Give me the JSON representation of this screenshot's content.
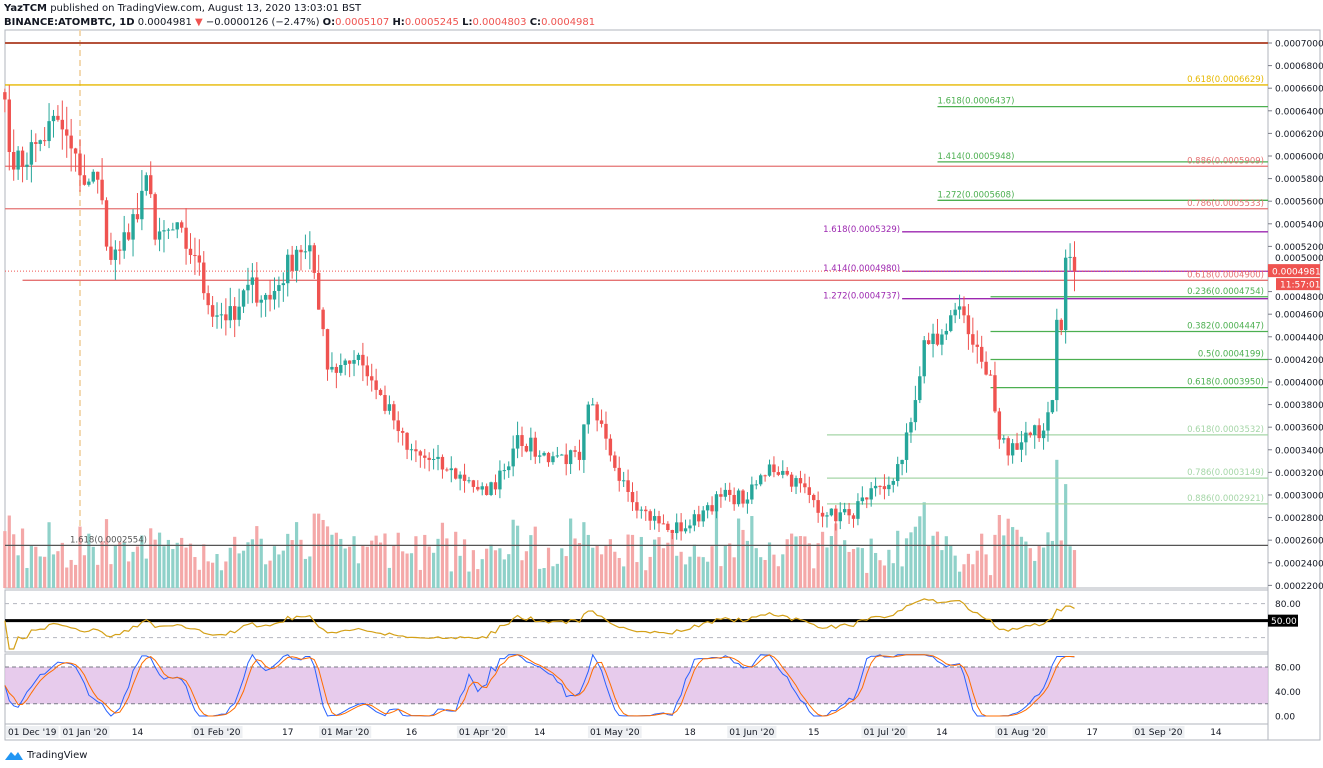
{
  "header": {
    "author": "YazTCM",
    "published": "published on TradingView.com, August 13, 2020 13:03:01 BST",
    "symbol": "BINANCE:ATOMBTC, 1D",
    "last": "0.0004981",
    "change": "−0.0000126 (−2.47%)",
    "change_icon": "triangle-down-icon",
    "o_label": "O:",
    "o": "0.0005107",
    "h_label": "H:",
    "h": "0.0005245",
    "l_label": "L:",
    "l": "0.0004803",
    "c_label": "C:",
    "c": "0.0004981"
  },
  "colors": {
    "up": "#26a69a",
    "down": "#ef5350",
    "vol_up": "#8fd1c9",
    "vol_down": "#f4a8a8",
    "rsi": "#d4a017",
    "stoch_k": "#2962ff",
    "stoch_d": "#ff6d00",
    "stoch_band": "#e1bee7",
    "fib_green": "#4caf50",
    "fib_red": "#e57373",
    "fib_purple": "#9c27b0",
    "fib_gold": "#e6b800",
    "fib_gray": "#555555"
  },
  "price_badge": {
    "value": "0.0004981",
    "countdown": "11:57:01"
  },
  "footer": {
    "brand": "TradingView",
    "logo_icon": "tradingview-cloud-icon"
  },
  "chart_data": {
    "type": "candlestick",
    "title": "",
    "xlabel": "",
    "ylabel": "",
    "ylim": [
      0.00021,
      0.000725
    ],
    "y_ticks": [
      0.0007,
      0.00068,
      0.00066,
      0.00064,
      0.00062,
      0.0006,
      0.00058,
      0.00056,
      0.00054,
      0.00052,
      0.0005,
      0.00048,
      0.00046,
      0.00044,
      0.00042,
      0.0004,
      0.00038,
      0.00036,
      0.00034,
      0.00032,
      0.0003,
      0.00028,
      0.00026,
      0.00024,
      0.00022
    ],
    "x_ticks": [
      {
        "date": "2019-12-01",
        "label": "01 Dec '19"
      },
      {
        "date": "2020-01-01",
        "label": "01 Jan '20"
      },
      {
        "date": "2020-01-14",
        "label": "14"
      },
      {
        "date": "2020-02-01",
        "label": "01 Feb '20"
      },
      {
        "date": "2020-02-17",
        "label": "17"
      },
      {
        "date": "2020-03-01",
        "label": "01 Mar '20"
      },
      {
        "date": "2020-03-16",
        "label": "16"
      },
      {
        "date": "2020-04-01",
        "label": "01 Apr '20"
      },
      {
        "date": "2020-04-14",
        "label": "14"
      },
      {
        "date": "2020-05-01",
        "label": "01 May '20"
      },
      {
        "date": "2020-05-18",
        "label": "18"
      },
      {
        "date": "2020-06-01",
        "label": "01 Jun '20"
      },
      {
        "date": "2020-06-15",
        "label": "15"
      },
      {
        "date": "2020-07-01",
        "label": "01 Jul '20"
      },
      {
        "date": "2020-07-14",
        "label": "14"
      },
      {
        "date": "2020-08-01",
        "label": "01 Aug '20"
      },
      {
        "date": "2020-08-17",
        "label": "17"
      },
      {
        "date": "2020-09-01",
        "label": "01 Sep '20"
      },
      {
        "date": "2020-09-14",
        "label": "14"
      }
    ],
    "closes": [
      [
        "2019-12-15",
        0.00065
      ],
      [
        "2019-12-17",
        0.000588
      ],
      [
        "2019-12-23",
        0.000614
      ],
      [
        "2019-12-27",
        0.000632
      ],
      [
        "2020-01-01",
        0.000583
      ],
      [
        "2020-01-05",
        0.000579
      ],
      [
        "2020-01-08",
        0.000508
      ],
      [
        "2020-01-12",
        0.000526
      ],
      [
        "2020-01-16",
        0.000583
      ],
      [
        "2020-01-18",
        0.000526
      ],
      [
        "2020-01-22",
        0.000535
      ],
      [
        "2020-01-27",
        0.000512
      ],
      [
        "2020-01-30",
        0.000468
      ],
      [
        "2020-02-05",
        0.000455
      ],
      [
        "2020-02-08",
        0.000486
      ],
      [
        "2020-02-13",
        0.000473
      ],
      [
        "2020-02-19",
        0.000517
      ],
      [
        "2020-02-22",
        0.000521
      ],
      [
        "2020-02-24",
        0.000464
      ],
      [
        "2020-02-26",
        0.000411
      ],
      [
        "2020-03-01",
        0.000419
      ],
      [
        "2020-03-04",
        0.000424
      ],
      [
        "2020-03-08",
        0.000393
      ],
      [
        "2020-03-12",
        0.000366
      ],
      [
        "2020-03-15",
        0.00034
      ],
      [
        "2020-03-20",
        0.000331
      ],
      [
        "2020-03-24",
        0.000322
      ],
      [
        "2020-03-29",
        0.000313
      ],
      [
        "2020-04-02",
        0.0003
      ],
      [
        "2020-04-06",
        0.000322
      ],
      [
        "2020-04-09",
        0.000353
      ],
      [
        "2020-04-14",
        0.000335
      ],
      [
        "2020-04-18",
        0.000335
      ],
      [
        "2020-04-23",
        0.000331
      ],
      [
        "2020-04-25",
        0.00038
      ],
      [
        "2020-04-27",
        0.000366
      ],
      [
        "2020-04-30",
        0.000335
      ],
      [
        "2020-05-03",
        0.000313
      ],
      [
        "2020-05-07",
        0.000287
      ],
      [
        "2020-05-13",
        0.000269
      ],
      [
        "2020-05-18",
        0.000273
      ],
      [
        "2020-05-22",
        0.000291
      ],
      [
        "2020-05-27",
        0.0003
      ],
      [
        "2020-05-31",
        0.000296
      ],
      [
        "2020-06-05",
        0.000327
      ],
      [
        "2020-06-09",
        0.000318
      ],
      [
        "2020-06-14",
        0.0003
      ],
      [
        "2020-06-18",
        0.000282
      ],
      [
        "2020-06-23",
        0.000282
      ],
      [
        "2020-06-27",
        0.000296
      ],
      [
        "2020-07-02",
        0.000309
      ],
      [
        "2020-07-05",
        0.000331
      ],
      [
        "2020-07-08",
        0.000384
      ],
      [
        "2020-07-10",
        0.000437
      ],
      [
        "2020-07-13",
        0.000433
      ],
      [
        "2020-07-17",
        0.000464
      ],
      [
        "2020-07-19",
        0.000459
      ],
      [
        "2020-07-21",
        0.000433
      ],
      [
        "2020-07-25",
        0.000406
      ],
      [
        "2020-07-27",
        0.000349
      ],
      [
        "2020-07-29",
        0.000335
      ],
      [
        "2020-07-31",
        0.00034
      ],
      [
        "2020-08-03",
        0.000353
      ],
      [
        "2020-08-06",
        0.000357
      ],
      [
        "2020-08-08",
        0.000384
      ],
      [
        "2020-08-09",
        0.000455
      ],
      [
        "2020-08-10",
        0.000446
      ],
      [
        "2020-08-11",
        0.00051
      ],
      [
        "2020-08-12",
        0.0005107
      ],
      [
        "2020-08-13",
        0.0004981
      ]
    ],
    "last_candle": {
      "date": "2020-08-13",
      "open": 0.0005107,
      "high": 0.0005245,
      "low": 0.0004803,
      "close": 0.0004981
    },
    "levels": [
      {
        "price": 0.0007,
        "label": "",
        "color": "#b5523b",
        "from": "2019-12-15",
        "label_side": "none"
      },
      {
        "price": 0.0006629,
        "label": "0.618(0.0006629)",
        "color": "#e6b800",
        "from": "2019-12-15",
        "label_side": "right"
      },
      {
        "price": 0.0006437,
        "label": "1.618(0.0006437)",
        "color": "#4caf50",
        "from": "2020-07-13",
        "label_side": "start"
      },
      {
        "price": 0.0005948,
        "label": "1.414(0.0005948)",
        "color": "#4caf50",
        "from": "2020-07-13",
        "label_side": "start"
      },
      {
        "price": 0.0005909,
        "label": "0.886(0.0005909)",
        "color": "#e57373",
        "from": "2019-12-15",
        "label_side": "right"
      },
      {
        "price": 0.0005608,
        "label": "1.272(0.0005608)",
        "color": "#4caf50",
        "from": "2020-07-13",
        "label_side": "start"
      },
      {
        "price": 0.0005533,
        "label": "0.786(0.0005533)",
        "color": "#e57373",
        "from": "2019-12-15",
        "label_side": "right"
      },
      {
        "price": 0.0005329,
        "label": "1.618(0.0005329)",
        "color": "#9c27b0",
        "from": "2020-07-05",
        "label_side": "before"
      },
      {
        "price": 0.000498,
        "label": "1.414(0.0004980)",
        "color": "#9c27b0",
        "from": "2020-07-05",
        "label_side": "before"
      },
      {
        "price": 0.00049,
        "label": "0.618(0.0004900)",
        "color": "#e57373",
        "from": "2019-12-19",
        "label_side": "right"
      },
      {
        "price": 0.0004754,
        "label": "0.236(0.0004754)",
        "color": "#4caf50",
        "from": "2020-07-25",
        "label_side": "right"
      },
      {
        "price": 0.0004737,
        "label": "1.272(0.0004737)",
        "color": "#9c27b0",
        "from": "2020-07-05",
        "label_side": "before"
      },
      {
        "price": 0.0004447,
        "label": "0.382(0.0004447)",
        "color": "#4caf50",
        "from": "2020-07-25",
        "label_side": "right"
      },
      {
        "price": 0.0004199,
        "label": "0.5(0.0004199)",
        "color": "#4caf50",
        "from": "2020-07-25",
        "label_side": "right"
      },
      {
        "price": 0.000395,
        "label": "0.618(0.0003950)",
        "color": "#4caf50",
        "from": "2020-07-25",
        "label_side": "right"
      },
      {
        "price": 0.0003532,
        "label": "0.618(0.0003532)",
        "color": "#a5d6a7",
        "from": "2020-06-18",
        "label_side": "right"
      },
      {
        "price": 0.0003149,
        "label": "0.786(0.0003149)",
        "color": "#a5d6a7",
        "from": "2020-06-18",
        "label_side": "right"
      },
      {
        "price": 0.0002921,
        "label": "0.886(0.0002921)",
        "color": "#a5d6a7",
        "from": "2020-06-18",
        "label_side": "right"
      },
      {
        "price": 0.0002554,
        "label": "1.618(0.0002554)",
        "color": "#555555",
        "from": "2019-12-15",
        "label_side": "left"
      }
    ],
    "rsi": {
      "levels": [
        80,
        50,
        20
      ],
      "axis_labels": [
        "80.00"
      ],
      "highlight": "50.00"
    },
    "stoch_rsi": {
      "levels": [
        80,
        20
      ],
      "axis_labels": [
        "80.00",
        "40.00",
        "0.00"
      ]
    }
  }
}
